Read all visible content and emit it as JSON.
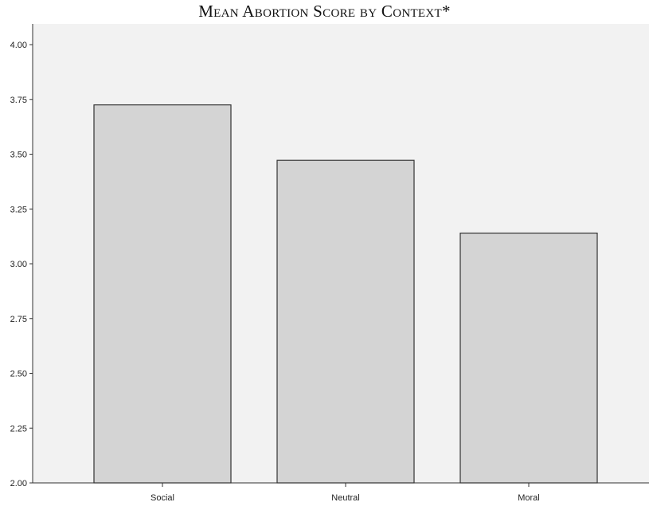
{
  "chart_data": {
    "type": "bar",
    "title": "Mean Abortion Score by Context*",
    "categories": [
      "Social",
      "Neutral",
      "Moral"
    ],
    "values": [
      3.725,
      3.472,
      3.14
    ],
    "ylim": [
      2.0,
      4.1
    ],
    "yticks": [
      "2.00",
      "2.25",
      "2.50",
      "2.75",
      "3.00",
      "3.25",
      "3.50",
      "3.75",
      "4.00"
    ],
    "xlabel": "",
    "ylabel": "",
    "grid": false,
    "colors": {
      "plot_background": "#f2f2f2",
      "bar_fill": "#d4d4d4",
      "bar_stroke": "#333333",
      "axis": "#333333"
    }
  }
}
